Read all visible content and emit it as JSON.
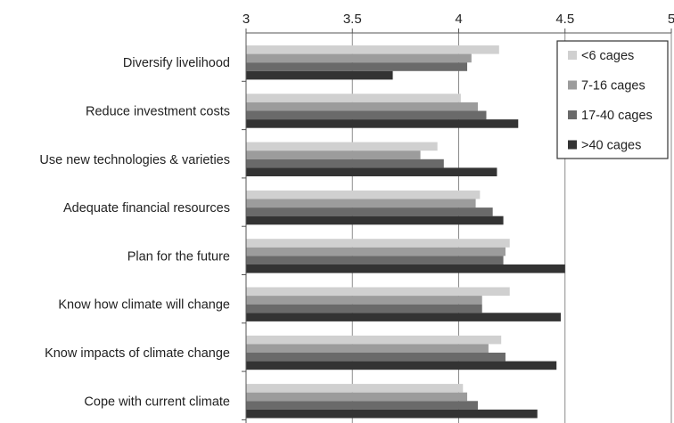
{
  "chart_data": {
    "type": "bar",
    "orientation": "horizontal",
    "title": "",
    "xlabel": "",
    "ylabel": "",
    "xlim": [
      3,
      5
    ],
    "x_ticks": [
      "3",
      "3.5",
      "4",
      "4.5",
      "5"
    ],
    "x_tick_values": [
      3,
      3.5,
      4,
      4.5,
      5
    ],
    "grid": "vertical major gridlines",
    "axis_position": "top",
    "legend_position": "top-right",
    "categories": [
      "Diversify livelihood",
      "Reduce investment costs",
      "Use new technologies & varieties",
      "Adequate financial resources",
      "Plan for the future",
      "Know how climate will change",
      "Know impacts of climate change",
      "Cope with current climate"
    ],
    "series": [
      {
        "name": "<6 cages",
        "color": "#d0d0d0",
        "values": [
          4.19,
          4.01,
          3.9,
          4.1,
          4.24,
          4.24,
          4.2,
          4.02
        ]
      },
      {
        "name": "7-16 cages",
        "color": "#9c9c9c",
        "values": [
          4.06,
          4.09,
          3.82,
          4.08,
          4.22,
          4.11,
          4.14,
          4.04
        ]
      },
      {
        "name": "17-40 cages",
        "color": "#6a6a6a",
        "values": [
          4.04,
          4.13,
          3.93,
          4.16,
          4.21,
          4.11,
          4.22,
          4.09
        ]
      },
      {
        "name": ">40 cages",
        "color": "#333333",
        "values": [
          3.69,
          4.28,
          4.18,
          4.21,
          4.5,
          4.48,
          4.46,
          4.37
        ]
      }
    ]
  }
}
